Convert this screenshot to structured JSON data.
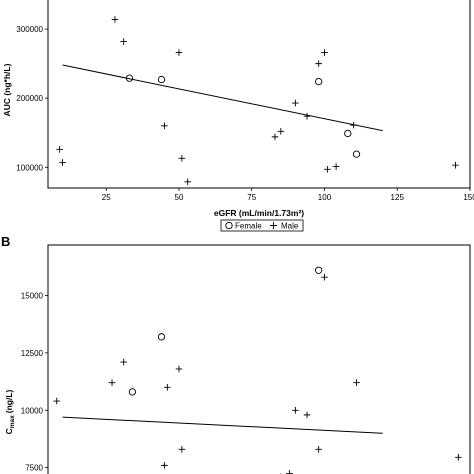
{
  "chart_data": [
    {
      "type": "scatter",
      "panel_label": "",
      "xlabel": "eGFR (mL/min/1.73m²)",
      "ylabel": "AUC (ng*h/L)",
      "xlim": [
        5,
        150
      ],
      "ylim": [
        70000,
        345000
      ],
      "x_ticks": [
        25,
        50,
        75,
        100,
        125,
        150
      ],
      "x_tick_labels": [
        "25",
        "50",
        "75",
        "100",
        "125",
        "150"
      ],
      "y_ticks": [
        100000,
        200000,
        300000
      ],
      "y_tick_labels": [
        "100000",
        "200000",
        "300000"
      ],
      "legend": {
        "placement": "below-plot",
        "entries": [
          {
            "name": "Female",
            "marker": "circle"
          },
          {
            "name": "Male",
            "marker": "plus"
          }
        ]
      },
      "series": [
        {
          "name": "Female",
          "marker": "circle",
          "points": [
            {
              "x": 33,
              "y": 229000
            },
            {
              "x": 44,
              "y": 227000
            },
            {
              "x": 98,
              "y": 224000
            },
            {
              "x": 108,
              "y": 149000
            },
            {
              "x": 111,
              "y": 119000
            }
          ]
        },
        {
          "name": "Male",
          "marker": "plus",
          "points": [
            {
              "x": 9,
              "y": 126000
            },
            {
              "x": 10,
              "y": 107000
            },
            {
              "x": 28,
              "y": 314000
            },
            {
              "x": 31,
              "y": 282000
            },
            {
              "x": 45,
              "y": 160000
            },
            {
              "x": 50,
              "y": 266000
            },
            {
              "x": 51,
              "y": 113000
            },
            {
              "x": 53,
              "y": 79000
            },
            {
              "x": 83,
              "y": 144000
            },
            {
              "x": 85,
              "y": 152000
            },
            {
              "x": 90,
              "y": 193000
            },
            {
              "x": 94,
              "y": 174000
            },
            {
              "x": 98,
              "y": 250000
            },
            {
              "x": 100,
              "y": 266000
            },
            {
              "x": 101,
              "y": 97000
            },
            {
              "x": 104,
              "y": 101000
            },
            {
              "x": 110,
              "y": 161000
            },
            {
              "x": 145,
              "y": 103000
            }
          ]
        }
      ],
      "regression_line": {
        "x": [
          10,
          120
        ],
        "y": [
          248000,
          153000
        ]
      }
    },
    {
      "type": "scatter",
      "panel_label": "B",
      "xlabel": "",
      "ylabel": "C",
      "ylabel_sub": "max",
      "ylabel_unit": "(ng/L)",
      "xlim": [
        5,
        150
      ],
      "ylim": [
        7050,
        17200
      ],
      "x_ticks": [],
      "y_ticks": [
        7500,
        10000,
        12500,
        15000
      ],
      "y_tick_labels": [
        "7500",
        "10000",
        "12500",
        "15000"
      ],
      "series": [
        {
          "name": "Female",
          "marker": "circle",
          "points": [
            {
              "x": 34,
              "y": 10800
            },
            {
              "x": 44,
              "y": 13200
            },
            {
              "x": 98,
              "y": 16100
            },
            {
              "x": 107,
              "y": 6900
            }
          ]
        },
        {
          "name": "Male",
          "marker": "plus",
          "points": [
            {
              "x": 8,
              "y": 10400
            },
            {
              "x": 27,
              "y": 11200
            },
            {
              "x": 31,
              "y": 12100
            },
            {
              "x": 45,
              "y": 7600
            },
            {
              "x": 46,
              "y": 11000
            },
            {
              "x": 50,
              "y": 11800
            },
            {
              "x": 51,
              "y": 8300
            },
            {
              "x": 85,
              "y": 7100
            },
            {
              "x": 88,
              "y": 7250
            },
            {
              "x": 90,
              "y": 10000
            },
            {
              "x": 94,
              "y": 9800
            },
            {
              "x": 98,
              "y": 8300
            },
            {
              "x": 100,
              "y": 15800
            },
            {
              "x": 111,
              "y": 11200
            },
            {
              "x": 146,
              "y": 7950
            }
          ]
        }
      ],
      "regression_line": {
        "x": [
          10,
          120
        ],
        "y": [
          9700,
          9000
        ]
      }
    }
  ]
}
